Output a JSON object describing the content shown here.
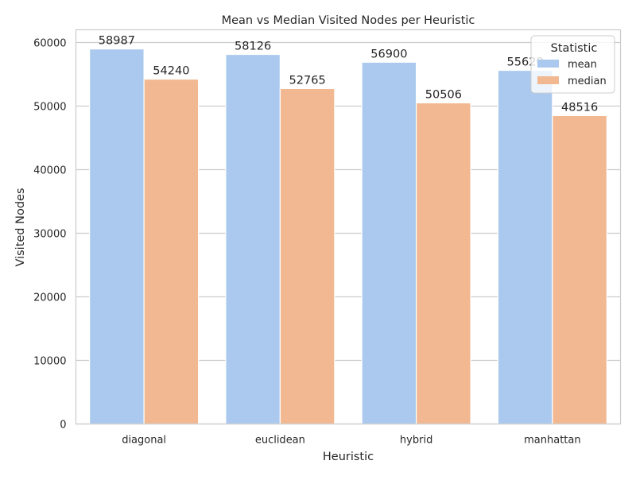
{
  "chart_data": {
    "type": "bar",
    "title": "Mean vs Median Visited Nodes per Heuristic",
    "xlabel": "Heuristic",
    "ylabel": "Visited Nodes",
    "categories": [
      "diagonal",
      "euclidean",
      "hybrid",
      "manhattan"
    ],
    "series": [
      {
        "name": "mean",
        "values": [
          58987,
          58126,
          56900,
          55620
        ],
        "labels": [
          "58987",
          "58126",
          "56900",
          "55620"
        ],
        "color": "#abc9ee"
      },
      {
        "name": "median",
        "values": [
          54240,
          52765,
          50506,
          48516
        ],
        "labels": [
          "54240",
          "52765",
          "50506",
          "48516"
        ],
        "color": "#f1b891"
      }
    ],
    "ylim": [
      0,
      62000
    ],
    "yticks": [
      0,
      10000,
      20000,
      30000,
      40000,
      50000,
      60000
    ],
    "grid": "horizontal",
    "legend": {
      "title": "Statistic",
      "placement": "top-right"
    }
  }
}
